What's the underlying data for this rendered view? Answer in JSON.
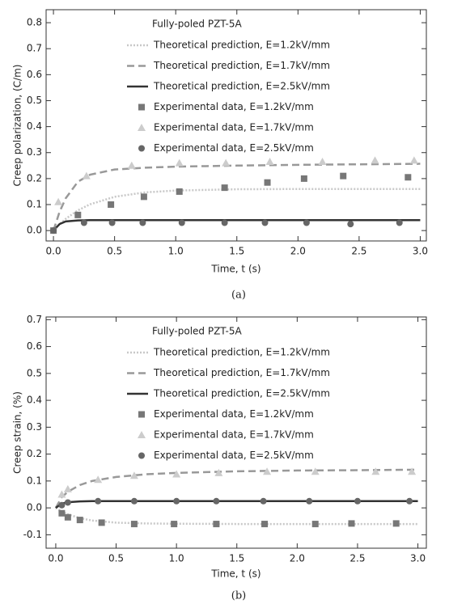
{
  "chart_data": [
    {
      "type": "line",
      "caption": "(a)",
      "x_label": "Time, t (s)",
      "y_label": "Creep polarization, (C/m)",
      "legend_title": "Fully-poled PZT-5A",
      "legend": "upper center",
      "xlim": [
        -0.06,
        3.05
      ],
      "ylim": [
        -0.04,
        0.85
      ],
      "xticks": [
        {
          "value": 0,
          "label": "0.0"
        },
        0.5,
        {
          "value": 1,
          "label": "1.0"
        },
        1.5,
        {
          "value": 2,
          "label": "2.0"
        },
        2.5,
        {
          "value": 3,
          "label": "3.0"
        }
      ],
      "yticks": [
        {
          "value": 0,
          "label": "0.0"
        },
        0.1,
        0.2,
        0.3,
        0.4,
        0.5,
        0.6,
        0.7,
        0.8
      ],
      "series": [
        {
          "name": "Theoretical prediction, E=1.2kV/mm",
          "color": "#c8c8c8",
          "style": "dotted",
          "x": [
            0,
            0.05,
            0.1,
            0.2,
            0.3,
            0.5,
            0.75,
            1,
            1.5,
            2,
            2.5,
            3
          ],
          "values": [
            0,
            0.025,
            0.045,
            0.078,
            0.101,
            0.13,
            0.147,
            0.154,
            0.159,
            0.16,
            0.16,
            0.16
          ]
        },
        {
          "name": "Theoretical prediction, E=1.7kV/mm",
          "color": "#999999",
          "style": "dashed",
          "x": [
            0,
            0.05,
            0.1,
            0.2,
            0.3,
            0.5,
            0.75,
            1,
            1.5,
            2,
            2.5,
            3
          ],
          "values": [
            0,
            0.072,
            0.124,
            0.188,
            0.215,
            0.235,
            0.242,
            0.246,
            0.25,
            0.253,
            0.255,
            0.257
          ]
        },
        {
          "name": "Theoretical prediction, E=2.5kV/mm",
          "color": "#333333",
          "style": "solid",
          "x": [
            0,
            0.05,
            0.1,
            0.2,
            0.3,
            0.5,
            0.75,
            1,
            1.5,
            2,
            2.5,
            3
          ],
          "values": [
            0,
            0.025,
            0.035,
            0.039,
            0.04,
            0.04,
            0.04,
            0.04,
            0.04,
            0.04,
            0.04,
            0.04
          ]
        },
        {
          "name": "Experimental data, E=1.2kV/mm",
          "color": "#777777",
          "marker": "square",
          "x": [
            0,
            0.2,
            0.47,
            0.74,
            1.03,
            1.4,
            1.75,
            2.05,
            2.37,
            2.9
          ],
          "values": [
            0,
            0.06,
            0.1,
            0.13,
            0.15,
            0.165,
            0.185,
            0.2,
            0.21,
            0.205
          ]
        },
        {
          "name": "Experimental data, E=1.7kV/mm",
          "color": "#cccccc",
          "marker": "triangle",
          "x": [
            0.04,
            0.27,
            0.64,
            1.03,
            1.41,
            1.77,
            2.2,
            2.63,
            2.95
          ],
          "values": [
            0.11,
            0.21,
            0.25,
            0.26,
            0.26,
            0.265,
            0.265,
            0.27,
            0.27
          ]
        },
        {
          "name": "Experimental data, E=2.5kV/mm",
          "color": "#666666",
          "marker": "circle",
          "x": [
            0,
            0.25,
            0.48,
            0.73,
            1.05,
            1.4,
            1.73,
            2.07,
            2.43,
            2.83
          ],
          "values": [
            0,
            0.03,
            0.03,
            0.03,
            0.03,
            0.03,
            0.03,
            0.03,
            0.025,
            0.03
          ]
        }
      ]
    },
    {
      "type": "line",
      "caption": "(b)",
      "x_label": "Time, t (s)",
      "y_label": "Creep strain, (%)",
      "legend_title": "Fully-poled PZT-5A",
      "legend": "upper center",
      "xlim": [
        -0.08,
        3.07
      ],
      "ylim": [
        -0.15,
        0.71
      ],
      "xticks": [
        {
          "value": 0,
          "label": "0.0"
        },
        0.5,
        {
          "value": 1,
          "label": "1.0"
        },
        1.5,
        {
          "value": 2,
          "label": "2.0"
        },
        2.5,
        {
          "value": 3,
          "label": "3.0"
        }
      ],
      "yticks": [
        -0.1,
        {
          "value": 0,
          "label": "0.0"
        },
        0.1,
        0.2,
        0.3,
        0.4,
        0.5,
        0.6,
        0.7
      ],
      "series": [
        {
          "name": "Theoretical prediction, E=1.2kV/mm",
          "color": "#c8c8c8",
          "style": "dotted",
          "x": [
            0,
            0.05,
            0.1,
            0.2,
            0.3,
            0.5,
            0.75,
            1,
            1.5,
            2,
            2.5,
            3
          ],
          "values": [
            0,
            -0.013,
            -0.024,
            -0.038,
            -0.047,
            -0.055,
            -0.058,
            -0.059,
            -0.06,
            -0.06,
            -0.06,
            -0.06
          ]
        },
        {
          "name": "Theoretical prediction, E=1.7kV/mm",
          "color": "#999999",
          "style": "dashed",
          "x": [
            0,
            0.05,
            0.1,
            0.2,
            0.3,
            0.5,
            0.75,
            1,
            1.5,
            2,
            2.5,
            3
          ],
          "values": [
            0,
            0.04,
            0.06,
            0.085,
            0.1,
            0.115,
            0.125,
            0.13,
            0.136,
            0.139,
            0.14,
            0.142
          ]
        },
        {
          "name": "Theoretical prediction, E=2.5kV/mm",
          "color": "#333333",
          "style": "solid",
          "x": [
            0,
            0.05,
            0.1,
            0.2,
            0.3,
            0.5,
            0.75,
            1,
            1.5,
            2,
            2.5,
            3
          ],
          "values": [
            0,
            0.016,
            0.021,
            0.024,
            0.025,
            0.025,
            0.025,
            0.025,
            0.025,
            0.025,
            0.025,
            0.025
          ]
        },
        {
          "name": "Experimental data, E=1.2kV/mm",
          "color": "#777777",
          "marker": "square",
          "x": [
            0.05,
            0.1,
            0.2,
            0.38,
            0.65,
            0.98,
            1.33,
            1.73,
            2.15,
            2.45,
            2.82
          ],
          "values": [
            -0.02,
            -0.035,
            -0.045,
            -0.055,
            -0.06,
            -0.06,
            -0.06,
            -0.06,
            -0.06,
            -0.058,
            -0.058
          ]
        },
        {
          "name": "Experimental data, E=1.7kV/mm",
          "color": "#cccccc",
          "marker": "triangle",
          "x": [
            0.05,
            0.1,
            0.35,
            0.65,
            1,
            1.35,
            1.75,
            2.15,
            2.65,
            2.95
          ],
          "values": [
            0.05,
            0.07,
            0.105,
            0.12,
            0.125,
            0.13,
            0.135,
            0.135,
            0.135,
            0.135
          ]
        },
        {
          "name": "Experimental data, E=2.5kV/mm",
          "color": "#666666",
          "marker": "circle",
          "x": [
            0.05,
            0.1,
            0.35,
            0.65,
            1,
            1.33,
            1.72,
            2.1,
            2.5,
            2.93
          ],
          "values": [
            0.01,
            0.02,
            0.025,
            0.025,
            0.025,
            0.025,
            0.025,
            0.025,
            0.025,
            0.025
          ]
        }
      ]
    }
  ]
}
